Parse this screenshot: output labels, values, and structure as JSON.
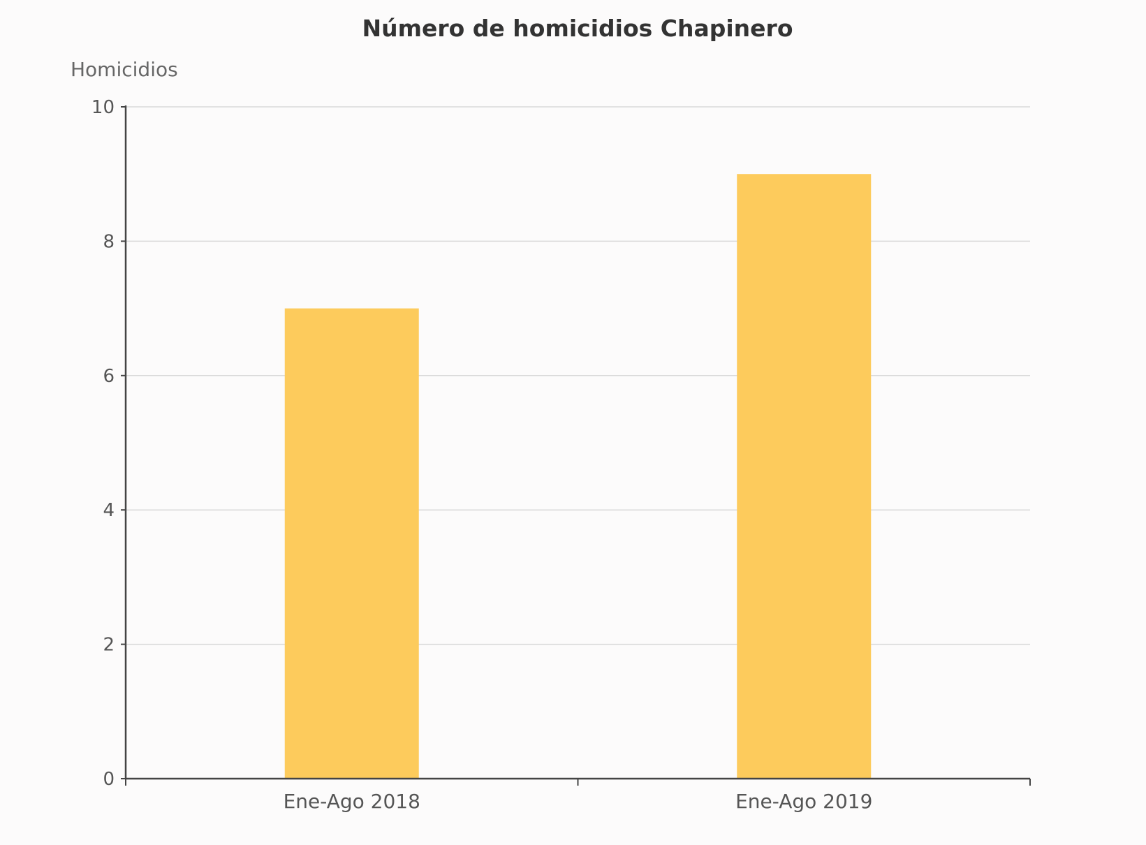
{
  "chart_data": {
    "type": "bar",
    "title": "Número de homicidios Chapinero",
    "ylabel": "Homicidios",
    "xlabel": "",
    "categories": [
      "Ene-Ago 2018",
      "Ene-Ago 2019"
    ],
    "values": [
      7,
      9
    ],
    "ylim": [
      0,
      10
    ],
    "yticks": [
      0,
      2,
      4,
      6,
      8,
      10
    ],
    "grid": true,
    "legend": "none",
    "colors": {
      "bar": "#fdcb5c",
      "grid": "#d9d9d9",
      "axis": "#444444",
      "background": "#fcfbfb"
    }
  }
}
